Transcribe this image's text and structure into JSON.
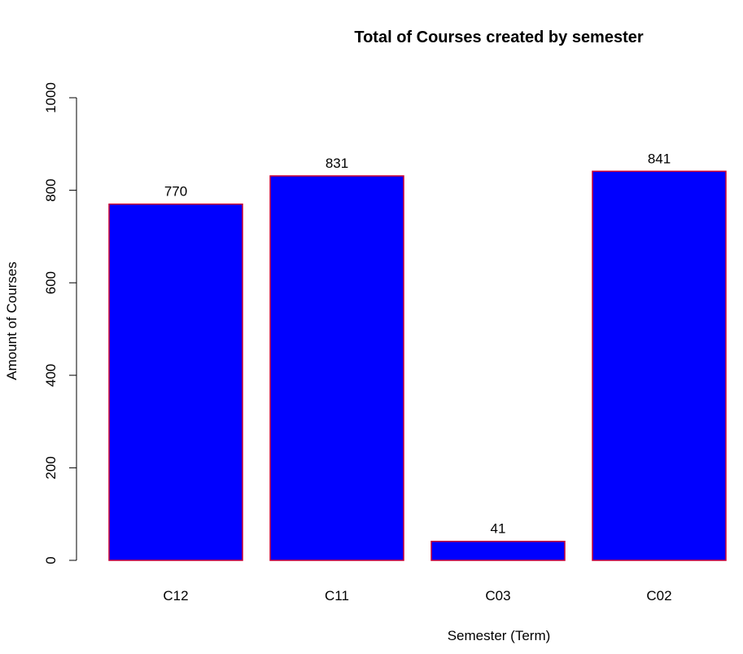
{
  "chart_data": {
    "type": "bar",
    "title": "Total of Courses created by semester",
    "xlabel": "Semester (Term)",
    "ylabel": "Amount of Courses",
    "categories": [
      "C12",
      "C11",
      "C03",
      "C02"
    ],
    "values": [
      770,
      831,
      41,
      841
    ],
    "data_labels": [
      "770",
      "831",
      "41",
      "841"
    ],
    "ylim": [
      0,
      1000
    ],
    "yticks": [
      0,
      200,
      400,
      600,
      800,
      1000
    ],
    "ytick_labels": [
      "0",
      "200",
      "400",
      "600",
      "800",
      "1000"
    ],
    "grid": false,
    "legend": "none",
    "colors": {
      "bar_fill": "#0000ff",
      "bar_border": "#cc0033",
      "axis": "#000000",
      "text": "#000000",
      "background": "#ffffff"
    }
  }
}
